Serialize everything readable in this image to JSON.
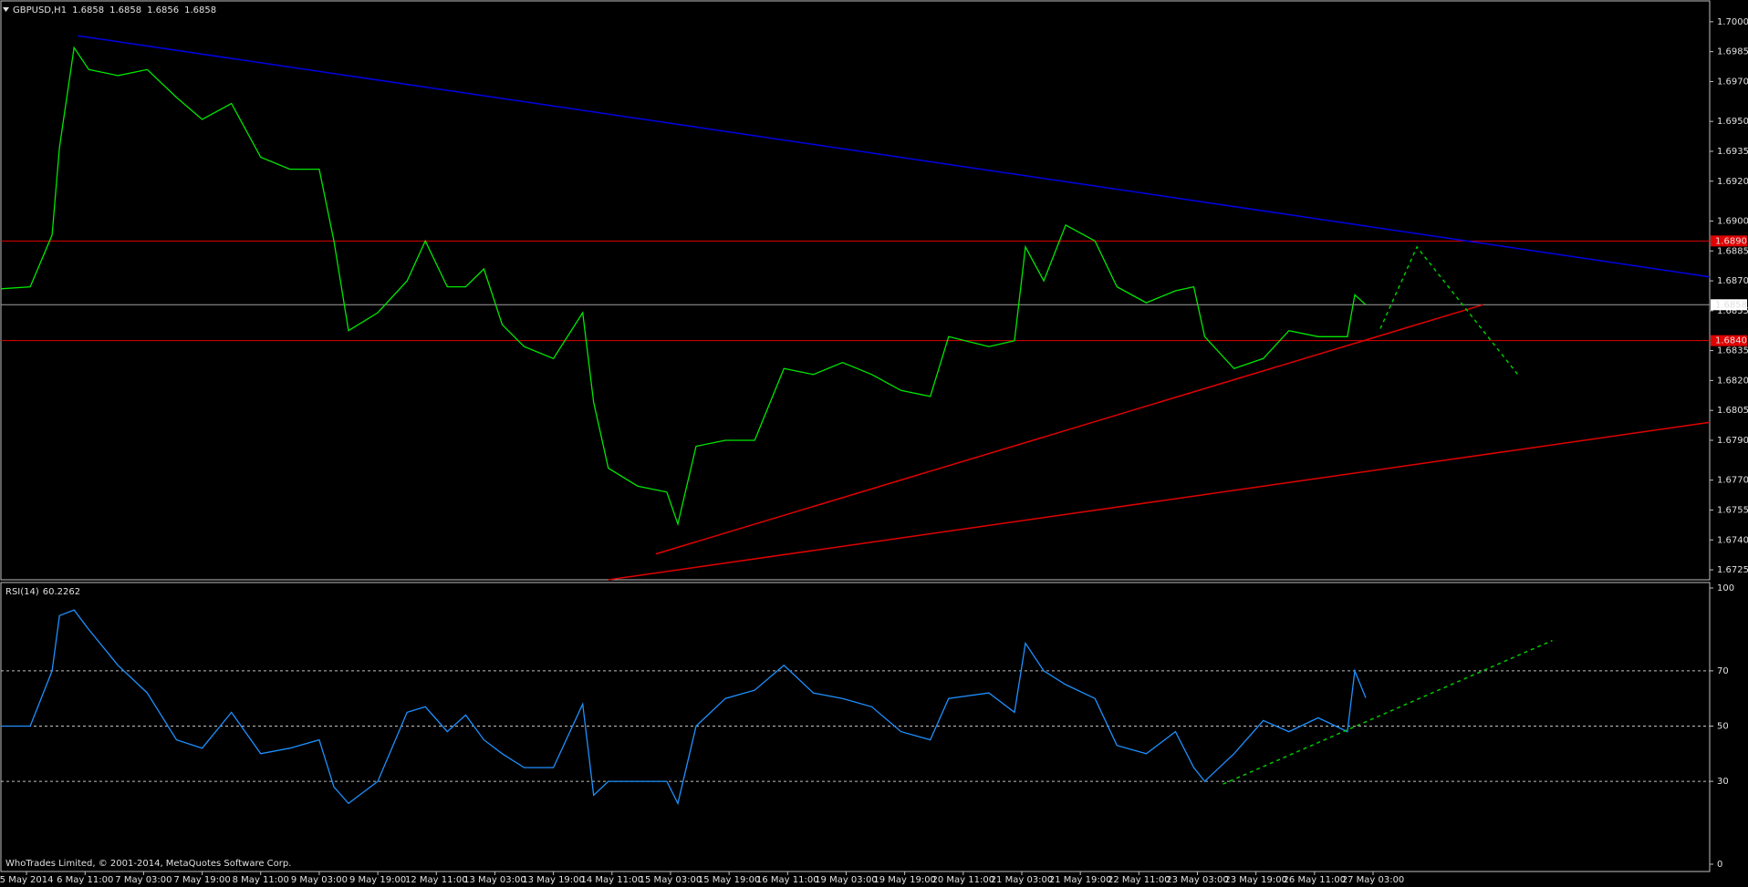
{
  "chart_data": [
    {
      "type": "line",
      "title": "GBPUSD,H1",
      "ohlc": [
        1.6858,
        1.6858,
        1.6856,
        1.6858
      ],
      "color": "#00e600",
      "x": [
        0,
        8,
        14,
        16,
        20,
        24,
        32,
        40,
        48,
        55,
        63,
        71,
        79,
        87,
        91,
        95,
        103,
        111,
        116,
        122,
        127,
        132,
        137,
        143,
        151,
        159,
        162,
        166,
        174,
        182,
        185,
        190,
        198,
        206,
        214,
        222,
        230,
        238,
        246,
        254,
        259,
        270,
        277,
        280,
        285,
        291,
        299,
        305,
        313,
        321,
        326,
        329,
        337,
        345,
        352,
        360,
        368,
        370,
        373
      ],
      "values": [
        1.6866,
        1.6867,
        1.6893,
        1.6937,
        1.6987,
        1.6976,
        1.6973,
        1.6976,
        1.6962,
        1.6951,
        1.6959,
        1.6932,
        1.6926,
        1.6926,
        1.689,
        1.6845,
        1.6854,
        1.687,
        1.689,
        1.6867,
        1.6867,
        1.6876,
        1.6848,
        1.6837,
        1.6831,
        1.6854,
        1.6809,
        1.6776,
        1.6767,
        1.6764,
        1.6748,
        1.6787,
        1.679,
        1.679,
        1.6826,
        1.6823,
        1.6829,
        1.6823,
        1.6815,
        1.6812,
        1.6842,
        1.6837,
        1.684,
        1.6887,
        1.687,
        1.6898,
        1.689,
        1.6867,
        1.6859,
        1.6865,
        1.6867,
        1.6842,
        1.6826,
        1.6831,
        1.6845,
        1.6842,
        1.6842,
        1.6863,
        1.6858
      ],
      "xlim": [
        0,
        467
      ],
      "ylim": [
        1.672,
        1.701
      ],
      "yticks": [
        {
          "value": 1.7,
          "label": "1.7000"
        },
        {
          "value": 1.6985,
          "label": "1.6985"
        },
        {
          "value": 1.697,
          "label": "1.6970"
        },
        {
          "value": 1.695,
          "label": "1.6950"
        },
        {
          "value": 1.6935,
          "label": "1.6935"
        },
        {
          "value": 1.692,
          "label": "1.6920"
        },
        {
          "value": 1.69,
          "label": "1.6900"
        },
        {
          "value": 1.6885,
          "label": "1.6885"
        },
        {
          "value": 1.687,
          "label": "1.6870"
        },
        {
          "value": 1.6855,
          "label": "1.6855"
        },
        {
          "value": 1.6835,
          "label": "1.6835"
        },
        {
          "value": 1.682,
          "label": "1.6820"
        },
        {
          "value": 1.6805,
          "label": "1.6805"
        },
        {
          "value": 1.679,
          "label": "1.6790"
        },
        {
          "value": 1.677,
          "label": "1.6770"
        },
        {
          "value": 1.6755,
          "label": "1.6755"
        },
        {
          "value": 1.674,
          "label": "1.6740"
        },
        {
          "value": 1.6725,
          "label": "1.6725"
        }
      ],
      "levels": [
        {
          "value": 1.689,
          "label": "1.6890",
          "color": "#e00000"
        },
        {
          "value": 1.684,
          "label": "1.6840",
          "color": "#e00000"
        }
      ],
      "current_price": 1.6858,
      "trend_lines": [
        {
          "color": "#0000e6",
          "dashed": false,
          "points": [
            [
              21,
              1.6993
            ],
            [
              467,
              1.6872
            ]
          ]
        },
        {
          "color": "#e00000",
          "dashed": false,
          "points": [
            [
              179,
              1.6733
            ],
            [
              405,
              1.6858
            ]
          ]
        },
        {
          "color": "#e00000",
          "dashed": false,
          "points": [
            [
              166,
              1.672
            ],
            [
              467,
              1.6799
            ]
          ]
        },
        {
          "color": "#00c800",
          "dashed": true,
          "points": [
            [
              377,
              1.6846
            ],
            [
              387,
              1.6887
            ],
            [
              415,
              1.6822
            ]
          ]
        }
      ]
    },
    {
      "type": "line",
      "title": "RSI(14)",
      "last_value": 60.2262,
      "color": "#1e90ff",
      "x": [
        0,
        8,
        14,
        16,
        20,
        24,
        32,
        40,
        48,
        55,
        63,
        71,
        79,
        87,
        91,
        95,
        103,
        111,
        116,
        122,
        127,
        132,
        137,
        143,
        151,
        159,
        162,
        166,
        174,
        182,
        185,
        190,
        198,
        206,
        214,
        222,
        230,
        238,
        246,
        254,
        259,
        270,
        277,
        280,
        285,
        291,
        299,
        305,
        313,
        321,
        326,
        329,
        337,
        345,
        352,
        360,
        368,
        370,
        373
      ],
      "values": [
        50,
        50,
        70,
        90,
        92,
        85,
        72,
        62,
        45,
        42,
        55,
        40,
        42,
        45,
        28,
        22,
        30,
        55,
        57,
        48,
        54,
        45,
        40,
        35,
        35,
        58,
        25,
        30,
        30,
        30,
        22,
        50,
        60,
        63,
        72,
        62,
        60,
        57,
        48,
        45,
        60,
        62,
        55,
        80,
        70,
        65,
        60,
        43,
        40,
        48,
        35,
        30,
        40,
        52,
        48,
        53,
        48,
        70,
        60.2262
      ],
      "xlim": [
        0,
        467
      ],
      "ylim": [
        0,
        100
      ],
      "yticks": [
        0,
        30,
        50,
        70,
        100
      ],
      "dashed_levels": true,
      "xticks": [
        {
          "value": 7,
          "label": "5 May 2014"
        },
        {
          "value": 23,
          "label": "6 May 11:00"
        },
        {
          "value": 39,
          "label": "7 May 03:00"
        },
        {
          "value": 55,
          "label": "7 May 19:00"
        },
        {
          "value": 71,
          "label": "8 May 11:00"
        },
        {
          "value": 87,
          "label": "9 May 03:00"
        },
        {
          "value": 103,
          "label": "9 May 19:00"
        },
        {
          "value": 119,
          "label": "12 May 11:00"
        },
        {
          "value": 135,
          "label": "13 May 03:00"
        },
        {
          "value": 151,
          "label": "13 May 19:00"
        },
        {
          "value": 167,
          "label": "14 May 11:00"
        },
        {
          "value": 183,
          "label": "15 May 03:00"
        },
        {
          "value": 199,
          "label": "15 May 19:00"
        },
        {
          "value": 215,
          "label": "16 May 11:00"
        },
        {
          "value": 231,
          "label": "19 May 03:00"
        },
        {
          "value": 247,
          "label": "19 May 19:00"
        },
        {
          "value": 263,
          "label": "20 May 11:00"
        },
        {
          "value": 279,
          "label": "21 May 03:00"
        },
        {
          "value": 295,
          "label": "21 May 19:00"
        },
        {
          "value": 311,
          "label": "22 May 11:00"
        },
        {
          "value": 327,
          "label": "23 May 03:00"
        },
        {
          "value": 343,
          "label": "23 May 19:00"
        },
        {
          "value": 359,
          "label": "26 May 11:00"
        },
        {
          "value": 375,
          "label": "27 May 03:00"
        }
      ],
      "trend_lines": [
        {
          "color": "#00c800",
          "dashed": true,
          "points": [
            [
              334,
              29
            ],
            [
              424,
              81
            ]
          ]
        }
      ],
      "copyright": "WhoTrades Limited, © 2001-2014, MetaQuotes Software Corp."
    }
  ]
}
